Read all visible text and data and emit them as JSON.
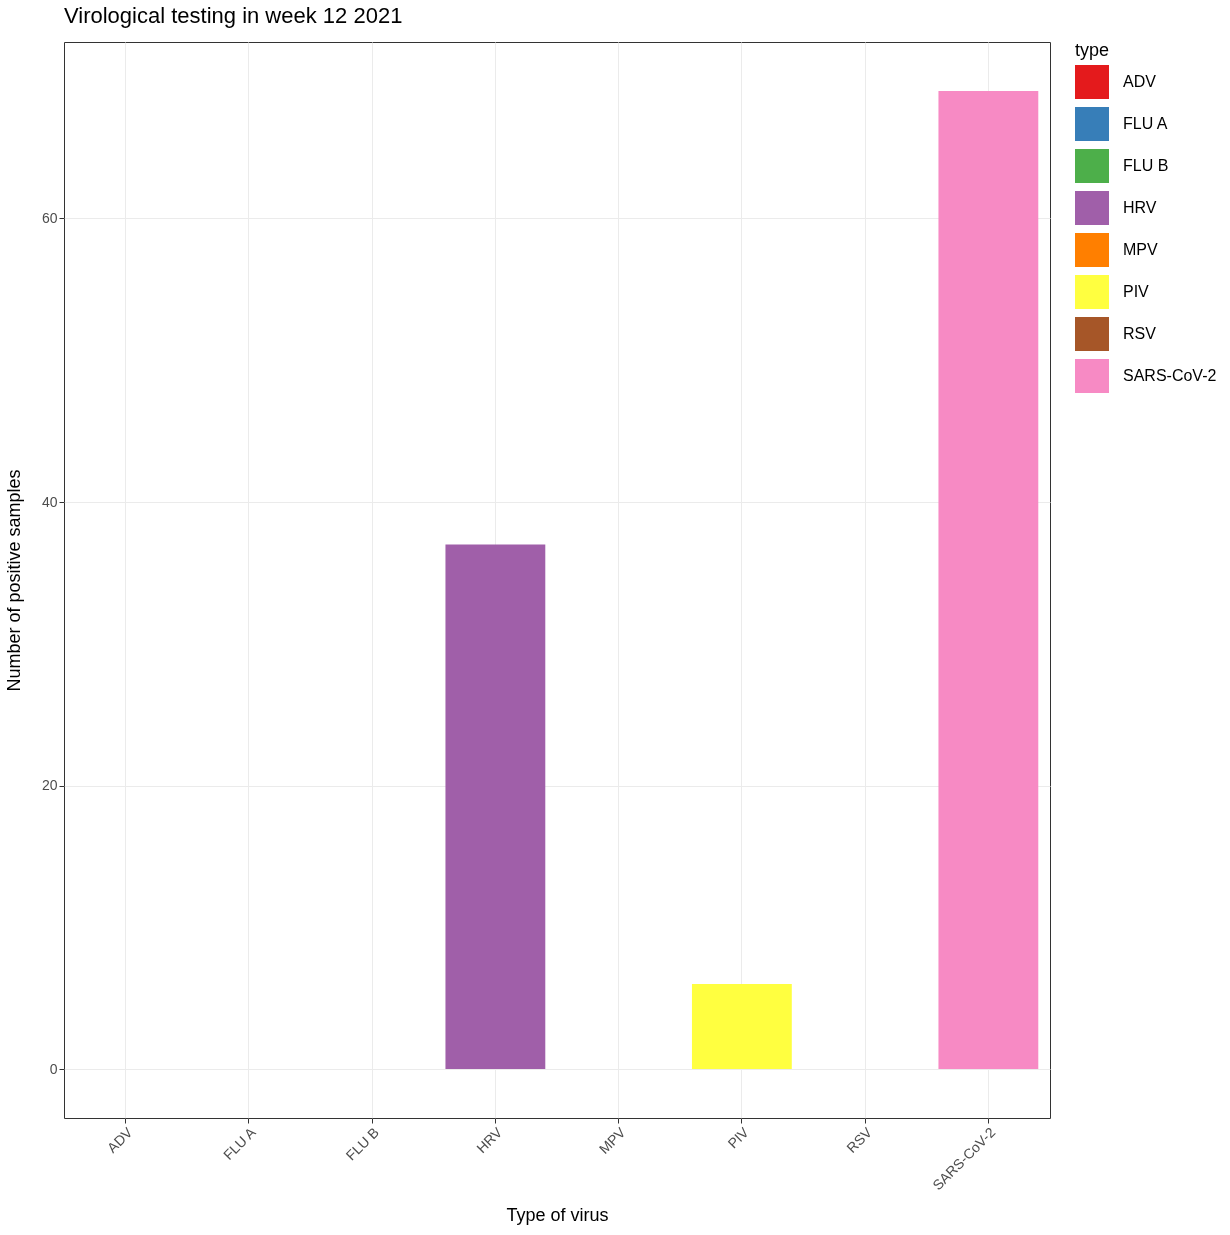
{
  "chart_data": {
    "type": "bar",
    "title": "Virological testing in week  12 2021",
    "xlabel": "Type of virus",
    "ylabel": "Number of positive samples",
    "legend_title": "type",
    "categories": [
      "ADV",
      "FLU A",
      "FLU B",
      "HRV",
      "MPV",
      "PIV",
      "RSV",
      "SARS-CoV-2"
    ],
    "series": [
      {
        "name": "ADV",
        "color": "#e41a1c",
        "values": [
          0,
          null,
          null,
          null,
          null,
          null,
          null,
          null
        ]
      },
      {
        "name": "FLU A",
        "color": "#377eb8",
        "values": [
          null,
          0,
          null,
          null,
          null,
          null,
          null,
          null
        ]
      },
      {
        "name": "FLU B",
        "color": "#4daf4a",
        "values": [
          null,
          null,
          0,
          null,
          null,
          null,
          null,
          null
        ]
      },
      {
        "name": "HRV",
        "color": "#a05fa9",
        "values": [
          null,
          null,
          null,
          37,
          null,
          null,
          null,
          null
        ]
      },
      {
        "name": "MPV",
        "color": "#ff7f00",
        "values": [
          null,
          null,
          null,
          null,
          0,
          null,
          null,
          null
        ]
      },
      {
        "name": "PIV",
        "color": "#ffff40",
        "values": [
          null,
          null,
          null,
          null,
          null,
          6,
          null,
          null
        ]
      },
      {
        "name": "RSV",
        "color": "#a65628",
        "values": [
          null,
          null,
          null,
          null,
          null,
          null,
          0,
          null
        ]
      },
      {
        "name": "SARS-CoV-2",
        "color": "#f78ac4",
        "values": [
          null,
          null,
          null,
          null,
          null,
          null,
          null,
          69
        ]
      }
    ],
    "ylim": [
      -3.45,
      72.45
    ],
    "yticks": [
      0,
      20,
      40,
      60
    ],
    "grid": true,
    "legend": "right"
  }
}
